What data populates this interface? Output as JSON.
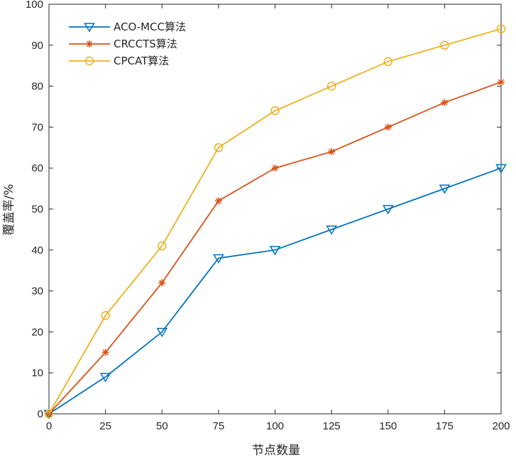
{
  "chart_data": {
    "type": "line",
    "title": "",
    "xlabel": "节点数量",
    "ylabel": "覆盖率/%",
    "x": [
      0,
      25,
      50,
      75,
      100,
      125,
      150,
      175,
      200
    ],
    "xlim": [
      0,
      200
    ],
    "ylim": [
      0,
      100
    ],
    "xticks": [
      0,
      25,
      50,
      75,
      100,
      125,
      150,
      175,
      200
    ],
    "yticks": [
      0,
      10,
      20,
      30,
      40,
      50,
      60,
      70,
      80,
      90,
      100
    ],
    "grid": false,
    "legend_position": "top-left",
    "series": [
      {
        "name": "ACO-MCC算法",
        "marker": "triangle-down",
        "color": "#0072BD",
        "values": [
          0,
          9,
          20,
          38,
          40,
          45,
          50,
          55,
          60
        ]
      },
      {
        "name": "CRCCTS算法",
        "marker": "asterisk",
        "color": "#D95319",
        "values": [
          0,
          15,
          32,
          52,
          60,
          64,
          70,
          76,
          81
        ]
      },
      {
        "name": "CPCAT算法",
        "marker": "circle",
        "color": "#EDB120",
        "values": [
          0,
          24,
          41,
          65,
          74,
          80,
          86,
          90,
          94
        ]
      }
    ]
  }
}
